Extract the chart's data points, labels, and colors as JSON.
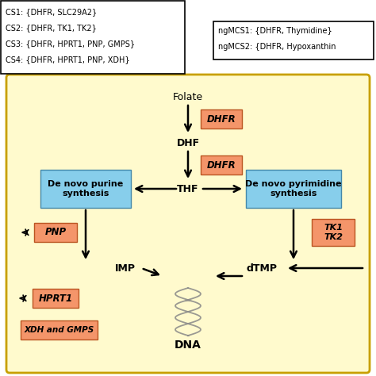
{
  "salmon": "#F4956A",
  "blue": "#87CEEB",
  "light_yellow": "#FFFACD",
  "gold_border": "#C8A000",
  "box_left_lines": [
    "CS1: {DHFR, SLC29A2}",
    "CS2: {DHFR, TK1, TK2}",
    "CS3: {DHFR, HPRT1, PNP, GMPS}",
    "CS4: {DHFR, HPRT1, PNP, XDH}"
  ],
  "box_right_line1": "ngMCS1: {DHFR, Thymidine}",
  "box_right_line2": "ngMCS2: {DHFR, Hypoxanthin"
}
